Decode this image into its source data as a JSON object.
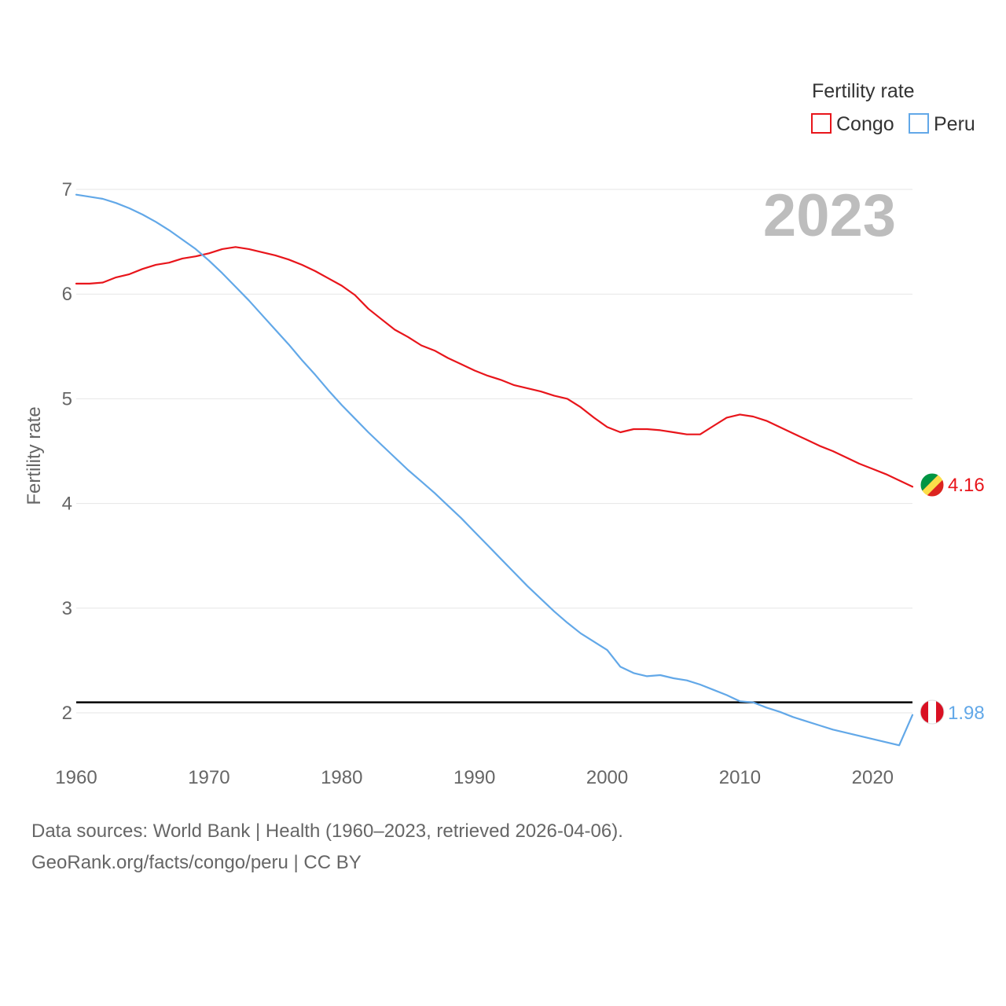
{
  "chart_data": {
    "type": "line",
    "ylabel": "Fertility rate",
    "xlabel": "",
    "xlim": [
      1960,
      2023
    ],
    "ylim": [
      1.5,
      7
    ],
    "yticks": [
      2,
      3,
      4,
      5,
      6,
      7
    ],
    "xticks": [
      1960,
      1970,
      1980,
      1990,
      2000,
      2010,
      2020
    ],
    "year_label": "2023",
    "legend": {
      "title": "Fertility rate",
      "position": "top-right",
      "items": [
        "Congo",
        "Peru"
      ]
    },
    "reference_line": {
      "y": 2.1,
      "color": "#000000"
    },
    "x": [
      1960,
      1961,
      1962,
      1963,
      1964,
      1965,
      1966,
      1967,
      1968,
      1969,
      1970,
      1971,
      1972,
      1973,
      1974,
      1975,
      1976,
      1977,
      1978,
      1979,
      1980,
      1981,
      1982,
      1983,
      1984,
      1985,
      1986,
      1987,
      1988,
      1989,
      1990,
      1991,
      1992,
      1993,
      1994,
      1995,
      1996,
      1997,
      1998,
      1999,
      2000,
      2001,
      2002,
      2003,
      2004,
      2005,
      2006,
      2007,
      2008,
      2009,
      2010,
      2011,
      2012,
      2013,
      2014,
      2015,
      2016,
      2017,
      2018,
      2019,
      2020,
      2021,
      2022,
      2023
    ],
    "series": [
      {
        "name": "Congo",
        "color": "#e8151b",
        "end_label": "4.16",
        "values": [
          6.1,
          6.1,
          6.11,
          6.16,
          6.19,
          6.24,
          6.28,
          6.3,
          6.34,
          6.36,
          6.39,
          6.43,
          6.45,
          6.43,
          6.4,
          6.37,
          6.33,
          6.28,
          6.22,
          6.15,
          6.08,
          5.99,
          5.86,
          5.76,
          5.66,
          5.59,
          5.51,
          5.46,
          5.39,
          5.33,
          5.27,
          5.22,
          5.18,
          5.13,
          5.1,
          5.07,
          5.03,
          5.0,
          4.92,
          4.82,
          4.73,
          4.68,
          4.71,
          4.71,
          4.7,
          4.68,
          4.66,
          4.66,
          4.74,
          4.82,
          4.85,
          4.83,
          4.79,
          4.73,
          4.67,
          4.61,
          4.55,
          4.5,
          4.44,
          4.38,
          4.33,
          4.28,
          4.22,
          4.16
        ]
      },
      {
        "name": "Peru",
        "color": "#62a8e8",
        "end_label": "1.98",
        "values": [
          6.95,
          6.93,
          6.91,
          6.87,
          6.82,
          6.76,
          6.69,
          6.61,
          6.52,
          6.43,
          6.32,
          6.2,
          6.07,
          5.94,
          5.8,
          5.66,
          5.52,
          5.37,
          5.23,
          5.08,
          4.94,
          4.81,
          4.68,
          4.56,
          4.44,
          4.32,
          4.21,
          4.1,
          3.98,
          3.86,
          3.73,
          3.6,
          3.47,
          3.34,
          3.21,
          3.09,
          2.97,
          2.86,
          2.76,
          2.68,
          2.6,
          2.44,
          2.38,
          2.35,
          2.36,
          2.33,
          2.31,
          2.27,
          2.22,
          2.17,
          2.11,
          2.1,
          2.05,
          2.01,
          1.96,
          1.92,
          1.88,
          1.84,
          1.81,
          1.78,
          1.75,
          1.72,
          1.69,
          1.98
        ]
      }
    ],
    "flags": [
      {
        "name": "congo-flag",
        "colors": [
          "#009543",
          "#fbde4a",
          "#dc241f"
        ]
      },
      {
        "name": "peru-flag",
        "colors": [
          "#d91023",
          "#ffffff"
        ]
      }
    ]
  },
  "source": {
    "line1": "Data sources: World Bank | Health (1960–2023, retrieved 2026-04-06).",
    "line2": "GeoRank.org/facts/congo/peru | CC BY"
  }
}
